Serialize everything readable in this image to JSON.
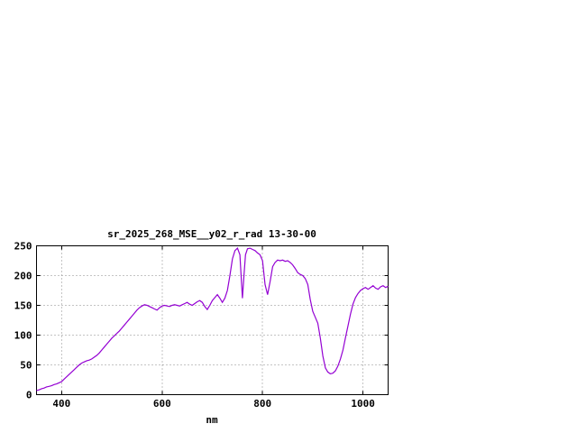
{
  "chart_data": {
    "type": "line",
    "title": "sr_2025_268_MSE__y02_r_rad 13-30-00",
    "xlabel": "nm",
    "ylabel": "",
    "xlim": [
      350,
      1050
    ],
    "ylim": [
      0,
      250
    ],
    "x_ticks": [
      400,
      600,
      800,
      1000
    ],
    "y_ticks": [
      0,
      50,
      100,
      150,
      200,
      250
    ],
    "grid": true,
    "legend": "none",
    "line_color": "#9400d3",
    "background_color": "#ffffff",
    "border_color": "#000000",
    "x": [
      350,
      355,
      360,
      365,
      370,
      375,
      380,
      385,
      390,
      395,
      400,
      405,
      410,
      415,
      420,
      425,
      430,
      435,
      440,
      445,
      450,
      455,
      460,
      465,
      470,
      475,
      480,
      485,
      490,
      495,
      500,
      505,
      510,
      515,
      520,
      525,
      530,
      535,
      540,
      545,
      550,
      555,
      560,
      565,
      570,
      575,
      580,
      585,
      590,
      595,
      600,
      605,
      610,
      615,
      620,
      625,
      630,
      635,
      640,
      645,
      650,
      655,
      660,
      665,
      670,
      675,
      680,
      685,
      690,
      695,
      700,
      705,
      710,
      715,
      720,
      725,
      730,
      735,
      740,
      745,
      750,
      755,
      758,
      760,
      763,
      766,
      770,
      775,
      780,
      785,
      790,
      795,
      800,
      805,
      810,
      815,
      820,
      825,
      830,
      835,
      840,
      845,
      850,
      855,
      860,
      865,
      870,
      875,
      880,
      885,
      890,
      895,
      900,
      905,
      910,
      915,
      920,
      925,
      930,
      935,
      940,
      945,
      950,
      955,
      960,
      965,
      970,
      975,
      980,
      985,
      990,
      995,
      1000,
      1005,
      1010,
      1015,
      1020,
      1025,
      1030,
      1035,
      1040,
      1045,
      1050
    ],
    "y": [
      7,
      8,
      10,
      11,
      13,
      14,
      15,
      17,
      18,
      20,
      22,
      26,
      30,
      34,
      38,
      42,
      46,
      50,
      53,
      55,
      57,
      58,
      60,
      63,
      66,
      70,
      75,
      80,
      85,
      90,
      95,
      99,
      103,
      107,
      112,
      117,
      122,
      127,
      132,
      137,
      142,
      146,
      149,
      151,
      150,
      148,
      146,
      144,
      142,
      146,
      149,
      150,
      149,
      148,
      150,
      151,
      150,
      149,
      151,
      153,
      155,
      152,
      150,
      153,
      156,
      158,
      155,
      148,
      143,
      150,
      158,
      163,
      168,
      162,
      155,
      162,
      175,
      200,
      228,
      242,
      246,
      235,
      190,
      162,
      200,
      235,
      245,
      246,
      244,
      242,
      238,
      235,
      225,
      185,
      168,
      190,
      215,
      222,
      226,
      225,
      226,
      224,
      225,
      222,
      218,
      212,
      205,
      202,
      200,
      195,
      185,
      160,
      140,
      130,
      120,
      95,
      65,
      45,
      38,
      35,
      36,
      40,
      48,
      60,
      75,
      95,
      115,
      135,
      152,
      163,
      170,
      175,
      178,
      180,
      177,
      180,
      183,
      179,
      177,
      181,
      183,
      180,
      182
    ]
  }
}
